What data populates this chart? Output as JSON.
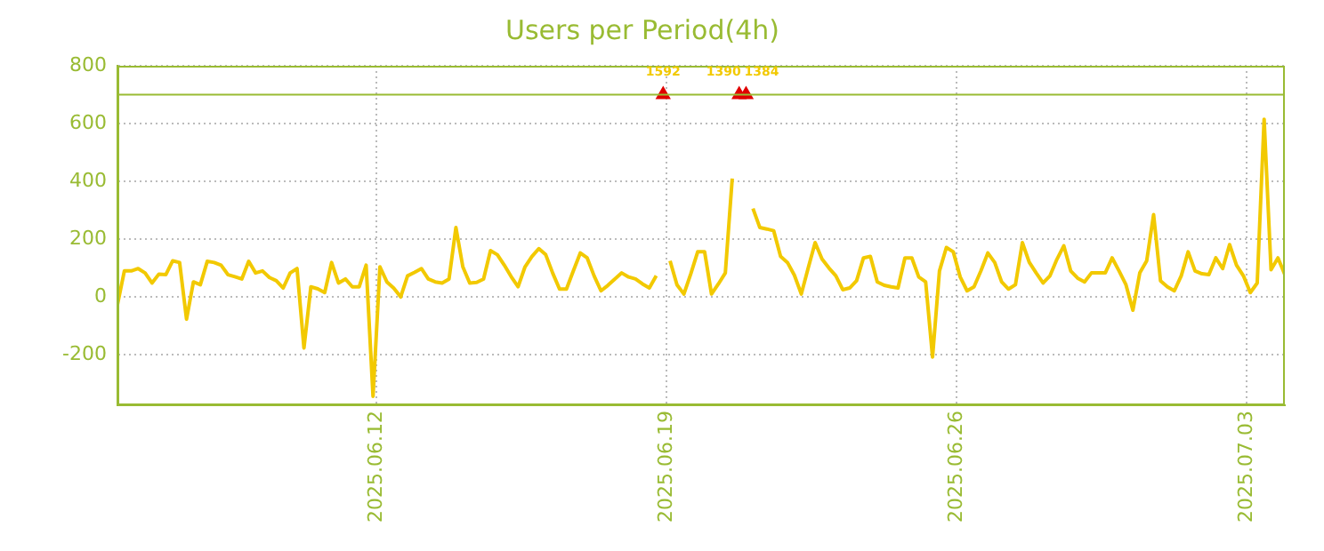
{
  "chart_data": {
    "type": "line",
    "title": "Users per Period(4h)",
    "x": [
      "2025-06-05T18:00",
      "2025-06-05T22:00",
      "2025-06-06T02:00",
      "2025-06-06T06:00",
      "2025-06-06T10:00",
      "2025-06-06T14:00",
      "2025-06-06T18:00",
      "2025-06-06T22:00",
      "2025-06-07T02:00",
      "2025-06-07T06:00",
      "2025-06-07T10:00",
      "2025-06-07T14:00",
      "2025-06-07T18:00",
      "2025-06-07T22:00",
      "2025-06-08T02:00",
      "2025-06-08T06:00",
      "2025-06-08T10:00",
      "2025-06-08T14:00",
      "2025-06-08T18:00",
      "2025-06-08T22:00",
      "2025-06-09T02:00",
      "2025-06-09T06:00",
      "2025-06-09T10:00",
      "2025-06-09T14:00",
      "2025-06-09T18:00",
      "2025-06-09T22:00",
      "2025-06-10T02:00",
      "2025-06-10T06:00",
      "2025-06-10T10:00",
      "2025-06-10T14:00",
      "2025-06-10T18:00",
      "2025-06-10T22:00",
      "2025-06-11T02:00",
      "2025-06-11T06:00",
      "2025-06-11T10:00",
      "2025-06-11T14:00",
      "2025-06-11T18:00",
      "2025-06-11T22:00",
      "2025-06-12T02:00",
      "2025-06-12T06:00",
      "2025-06-12T10:00",
      "2025-06-12T14:00",
      "2025-06-12T18:00",
      "2025-06-12T22:00",
      "2025-06-13T02:00",
      "2025-06-13T06:00",
      "2025-06-13T10:00",
      "2025-06-13T14:00",
      "2025-06-13T18:00",
      "2025-06-13T22:00",
      "2025-06-14T02:00",
      "2025-06-14T06:00",
      "2025-06-14T10:00",
      "2025-06-14T14:00",
      "2025-06-14T18:00",
      "2025-06-14T22:00",
      "2025-06-15T02:00",
      "2025-06-15T06:00",
      "2025-06-15T10:00",
      "2025-06-15T14:00",
      "2025-06-15T18:00",
      "2025-06-15T22:00",
      "2025-06-16T02:00",
      "2025-06-16T06:00",
      "2025-06-16T10:00",
      "2025-06-16T14:00",
      "2025-06-16T18:00",
      "2025-06-16T22:00",
      "2025-06-17T02:00",
      "2025-06-17T06:00",
      "2025-06-17T10:00",
      "2025-06-17T14:00",
      "2025-06-17T18:00",
      "2025-06-17T22:00",
      "2025-06-18T02:00",
      "2025-06-18T06:00",
      "2025-06-18T10:00",
      "2025-06-18T14:00",
      "2025-06-18T18:00",
      "2025-06-18T22:00",
      "2025-06-19T02:00",
      "2025-06-19T06:00",
      "2025-06-19T10:00",
      "2025-06-19T14:00",
      "2025-06-19T18:00",
      "2025-06-19T22:00",
      "2025-06-20T02:00",
      "2025-06-20T06:00",
      "2025-06-20T10:00",
      "2025-06-20T14:00",
      "2025-06-20T18:00",
      "2025-06-20T22:00",
      "2025-06-21T02:00",
      "2025-06-21T06:00",
      "2025-06-21T10:00",
      "2025-06-21T14:00",
      "2025-06-21T18:00",
      "2025-06-21T22:00",
      "2025-06-22T02:00",
      "2025-06-22T06:00",
      "2025-06-22T10:00",
      "2025-06-22T14:00",
      "2025-06-22T18:00",
      "2025-06-22T22:00",
      "2025-06-23T02:00",
      "2025-06-23T06:00",
      "2025-06-23T10:00",
      "2025-06-23T14:00",
      "2025-06-23T18:00",
      "2025-06-23T22:00",
      "2025-06-24T02:00",
      "2025-06-24T06:00",
      "2025-06-24T10:00",
      "2025-06-24T14:00",
      "2025-06-24T18:00",
      "2025-06-24T22:00",
      "2025-06-25T02:00",
      "2025-06-25T06:00",
      "2025-06-25T10:00",
      "2025-06-25T14:00",
      "2025-06-25T18:00",
      "2025-06-25T22:00",
      "2025-06-26T02:00",
      "2025-06-26T06:00",
      "2025-06-26T10:00",
      "2025-06-26T14:00",
      "2025-06-26T18:00",
      "2025-06-26T22:00",
      "2025-06-27T02:00",
      "2025-06-27T06:00",
      "2025-06-27T10:00",
      "2025-06-27T14:00",
      "2025-06-27T18:00",
      "2025-06-27T22:00",
      "2025-06-28T02:00",
      "2025-06-28T06:00",
      "2025-06-28T10:00",
      "2025-06-28T14:00",
      "2025-06-28T18:00",
      "2025-06-28T22:00",
      "2025-06-29T02:00",
      "2025-06-29T06:00",
      "2025-06-29T10:00",
      "2025-06-29T14:00",
      "2025-06-29T18:00",
      "2025-06-29T22:00",
      "2025-06-30T02:00",
      "2025-06-30T06:00",
      "2025-06-30T10:00",
      "2025-06-30T14:00",
      "2025-06-30T18:00",
      "2025-06-30T22:00",
      "2025-07-01T02:00",
      "2025-07-01T06:00",
      "2025-07-01T10:00",
      "2025-07-01T14:00",
      "2025-07-01T18:00",
      "2025-07-01T22:00",
      "2025-07-02T02:00",
      "2025-07-02T06:00",
      "2025-07-02T10:00",
      "2025-07-02T14:00",
      "2025-07-02T18:00",
      "2025-07-02T22:00",
      "2025-07-03T02:00",
      "2025-07-03T06:00",
      "2025-07-03T10:00",
      "2025-07-03T14:00",
      "2025-07-03T18:00",
      "2025-07-03T22:00"
    ],
    "series": [
      {
        "color": "#f2c900",
        "values": [
          -27,
          90,
          90,
          98,
          83,
          48,
          79,
          77,
          125,
          119,
          -77,
          52,
          42,
          123,
          119,
          110,
          77,
          70,
          62,
          123,
          83,
          90,
          67,
          56,
          31,
          83,
          98,
          -177,
          35,
          28,
          15,
          119,
          48,
          62,
          35,
          35,
          110,
          -344,
          104,
          52,
          30,
          0,
          73,
          85,
          98,
          62,
          52,
          48,
          62,
          240,
          104,
          48,
          50,
          62,
          160,
          146,
          110,
          70,
          35,
          104,
          140,
          167,
          146,
          83,
          27,
          27,
          90,
          152,
          135,
          73,
          21,
          40,
          62,
          83,
          69,
          62,
          45,
          31,
          73,
          null,
          125,
          42,
          10,
          80,
          156,
          156,
          10,
          45,
          83,
          410,
          null,
          null,
          306,
          240,
          235,
          229,
          140,
          119,
          75,
          10,
          100,
          188,
          131,
          100,
          73,
          25,
          31,
          56,
          135,
          140,
          52,
          40,
          35,
          31,
          135,
          135,
          69,
          52,
          -208,
          90,
          171,
          156,
          69,
          21,
          35,
          90,
          152,
          119,
          52,
          27,
          42,
          188,
          120,
          83,
          48,
          73,
          130,
          177,
          90,
          65,
          52,
          83,
          83,
          83,
          135,
          90,
          42,
          -46,
          83,
          125,
          285,
          56,
          35,
          21,
          73,
          156,
          90,
          80,
          77,
          135,
          98,
          181,
          110,
          73,
          15,
          48,
          615,
          94,
          135,
          77
        ]
      },
      {
        "type": "scatter",
        "color": "#e00000",
        "marker": "triangle",
        "x": [
          "2025-06-18T22:00",
          "2025-06-20T18:00",
          "2025-06-20T22:00"
        ],
        "values": [
          700,
          700,
          700
        ]
      }
    ],
    "xlim": [
      "2025-06-05T18:00",
      "2025-07-03T22:00"
    ],
    "xticks": [
      {
        "value": "2025-06-12",
        "label": "2025.06.12"
      },
      {
        "value": "2025-06-19",
        "label": "2025.06.19"
      },
      {
        "value": "2025-06-26",
        "label": "2025.06.26"
      },
      {
        "value": "2025-07-03",
        "label": "2025.07.03"
      }
    ],
    "ylim": [
      -375,
      800
    ],
    "yticks": [
      -200,
      0,
      200,
      400,
      600,
      800
    ],
    "ref_lines": [
      {
        "axis": "y",
        "value": 700,
        "color": "#99bb33"
      }
    ],
    "annotations": [
      {
        "text": "1592",
        "x": "2025-06-18T22:00",
        "y": 700
      },
      {
        "text": "1390",
        "x": "2025-06-20T18:00",
        "y": 700
      },
      {
        "text": "1384",
        "x": "2025-06-20T22:00",
        "y": 700
      }
    ],
    "grid": true,
    "marker": "none",
    "line_style": "solid",
    "legend": false
  }
}
